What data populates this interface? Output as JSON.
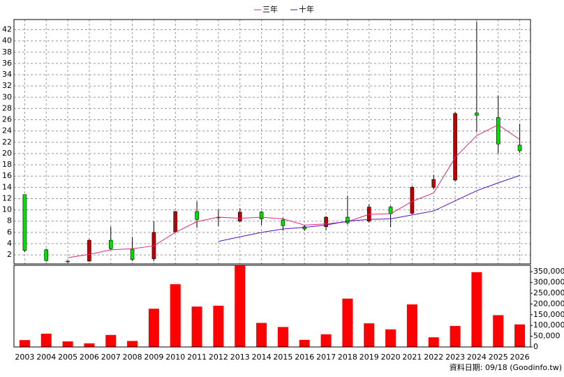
{
  "chart_data": [
    {
      "type": "candlestick",
      "categories": [
        "2003",
        "2004",
        "2005",
        "2006",
        "2007",
        "2008",
        "2009",
        "2010",
        "2011",
        "2012",
        "2013",
        "2014",
        "2015",
        "2016",
        "2017",
        "2018",
        "2019",
        "2020",
        "2021",
        "2022",
        "2023",
        "2024",
        "2025",
        "2026"
      ],
      "open": [
        12.7,
        2.9,
        0.9,
        0.9,
        4.6,
        3.0,
        1.3,
        6.1,
        9.7,
        8.6,
        8.0,
        9.6,
        8.2,
        7.0,
        7.0,
        8.7,
        8.0,
        10.5,
        9.4,
        14.0,
        15.3,
        27.2,
        26.4,
        21.5
      ],
      "high": [
        12.7,
        3.1,
        1.0,
        4.8,
        7.0,
        5.2,
        8.0,
        9.8,
        11.5,
        10.1,
        10.3,
        9.8,
        8.6,
        7.3,
        8.9,
        12.5,
        11.0,
        10.7,
        14.3,
        16.2,
        27.4,
        43.4,
        30.3,
        25.3
      ],
      "low": [
        2.5,
        0.8,
        0.6,
        0.8,
        2.9,
        0.9,
        0.9,
        6.0,
        6.8,
        7.1,
        7.8,
        7.3,
        6.3,
        6.3,
        6.4,
        7.4,
        7.7,
        6.9,
        9.2,
        13.6,
        15.0,
        23.8,
        20.0,
        20.1
      ],
      "close": [
        2.8,
        1.0,
        0.8,
        4.6,
        3.1,
        1.2,
        6.0,
        9.7,
        8.3,
        8.7,
        9.6,
        8.4,
        7.2,
        6.6,
        8.7,
        7.7,
        10.5,
        9.3,
        14.0,
        15.4,
        27.1,
        26.8,
        21.7,
        20.5
      ],
      "up_color": "#c00000",
      "down_color": "#00e000",
      "series": [
        {
          "name": "三年",
          "color": "#e0287a",
          "values": [
            null,
            null,
            1.5,
            2.1,
            2.9,
            3.1,
            3.6,
            6.0,
            7.9,
            8.7,
            8.5,
            8.7,
            8.4,
            7.3,
            7.5,
            7.9,
            9.2,
            9.3,
            11.5,
            13.0,
            19.3,
            23.2,
            25.1,
            22.5
          ]
        },
        {
          "name": "十年",
          "color": "#5010c0",
          "values": [
            null,
            null,
            null,
            null,
            null,
            null,
            null,
            null,
            null,
            4.4,
            5.2,
            6.0,
            6.6,
            6.9,
            7.3,
            8.0,
            8.3,
            8.4,
            9.1,
            9.8,
            11.6,
            13.4,
            14.8,
            16.1
          ]
        }
      ],
      "ylim": [
        0.4,
        43.8
      ],
      "yticks": [
        2,
        4,
        6,
        8,
        10,
        12,
        14,
        16,
        18,
        20,
        22,
        24,
        26,
        28,
        30,
        32,
        34,
        36,
        38,
        40,
        42
      ],
      "grid": true
    },
    {
      "type": "bar",
      "categories": [
        "2003",
        "2004",
        "2005",
        "2006",
        "2007",
        "2008",
        "2009",
        "2010",
        "2011",
        "2012",
        "2013",
        "2014",
        "2015",
        "2016",
        "2017",
        "2018",
        "2019",
        "2020",
        "2021",
        "2022",
        "2023",
        "2024",
        "2025",
        "2026"
      ],
      "values": [
        32000,
        62000,
        26000,
        17000,
        56000,
        28000,
        178000,
        292000,
        188000,
        192000,
        378000,
        112000,
        93000,
        33000,
        59000,
        225000,
        110000,
        82000,
        198000,
        45000,
        98000,
        348000,
        148000,
        105000
      ],
      "color": "#ff0000",
      "ylim": [
        0,
        380000
      ],
      "yticks": [
        0,
        {
          "value": 50000,
          "label": "50,000"
        },
        {
          "value": 100000,
          "label": "100,000"
        },
        {
          "value": 150000,
          "label": "150,000"
        },
        {
          "value": 200000,
          "label": "200,000"
        },
        {
          "value": 250000,
          "label": "250,000"
        },
        {
          "value": 300000,
          "label": "300,000"
        },
        {
          "value": 350000,
          "label": "350,000"
        }
      ],
      "source": "資料日期: 09/18  (Goodinfo.tw)"
    }
  ]
}
